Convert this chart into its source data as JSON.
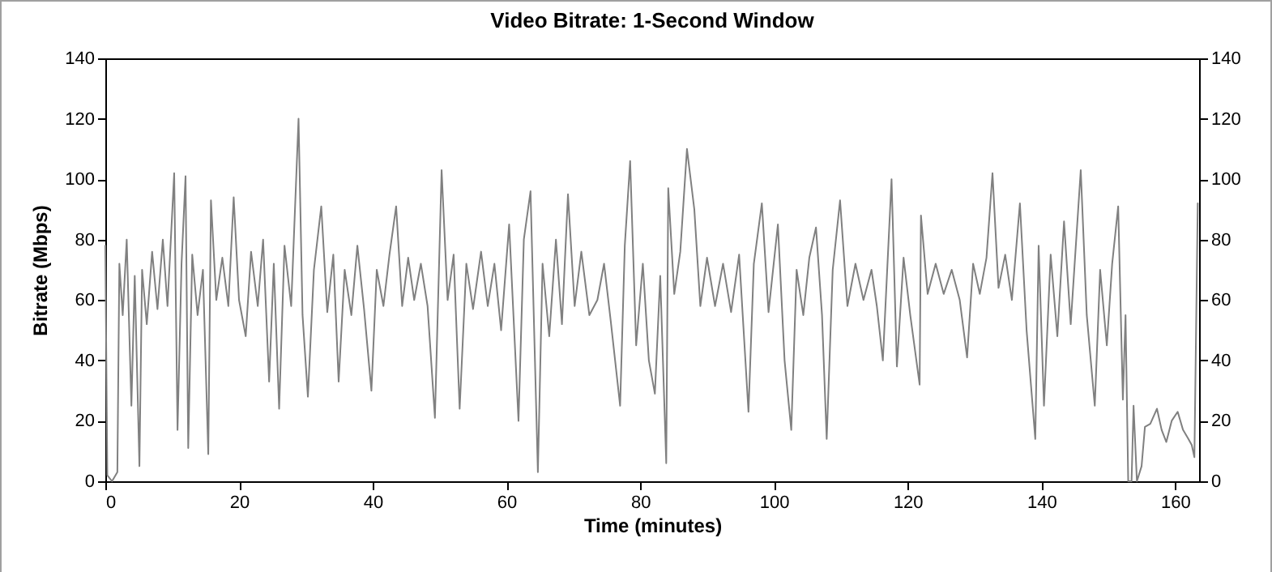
{
  "chart_data": {
    "type": "line",
    "title": "Video Bitrate: 1-Second Window",
    "xlabel": "Time (minutes)",
    "ylabel": "Bitrate (Mbps)",
    "x": [
      0,
      0.3,
      1,
      1.8,
      2.1,
      2.6,
      3.2,
      3.9,
      4.4,
      5.1,
      5.5,
      6.2,
      7,
      7.8,
      8.6,
      9.3,
      10.3,
      10.8,
      11.4,
      12,
      12.4,
      13,
      13.8,
      14.6,
      15.4,
      15.8,
      16.6,
      17.5,
      18.4,
      19.2,
      20,
      21,
      21.8,
      22.8,
      23.6,
      24.5,
      25.2,
      26,
      26.8,
      27.8,
      28.9,
      29.5,
      30.3,
      31.2,
      32.3,
      33.2,
      34.1,
      34.9,
      35.8,
      36.8,
      37.7,
      38.7,
      39.8,
      40.6,
      41.6,
      42.5,
      43.5,
      44.4,
      45.3,
      46.2,
      47.2,
      48.2,
      49.3,
      50.3,
      51.2,
      52.1,
      53,
      54,
      55,
      56.2,
      57.2,
      58.2,
      59.2,
      60.4,
      61.8,
      62.6,
      63.6,
      64.7,
      65.4,
      66.4,
      67.4,
      68.3,
      69.2,
      70.2,
      71.2,
      72.4,
      73.6,
      74.6,
      75.6,
      77,
      77.7,
      78.5,
      79.4,
      80.4,
      81.3,
      82.2,
      83,
      83.9,
      84.2,
      85.1,
      86,
      87,
      88.1,
      89,
      90,
      91.2,
      92.4,
      93.6,
      94.8,
      96.2,
      97,
      98.2,
      99.2,
      100.6,
      101.6,
      102.6,
      103.4,
      104.4,
      105.3,
      106.3,
      107.2,
      107.9,
      108.8,
      109.9,
      111,
      112.2,
      113.4,
      114.6,
      115.4,
      116.3,
      117.6,
      118.4,
      119.4,
      120.4,
      121.8,
      122,
      123,
      124.2,
      125.4,
      126.6,
      127.8,
      128.9,
      129.8,
      130.8,
      131.8,
      132.7,
      133.6,
      134.6,
      135.6,
      136.8,
      137.8,
      139.1,
      139.6,
      140.4,
      141.4,
      142.4,
      143.4,
      144.4,
      145.9,
      146.8,
      148,
      148.8,
      149.8,
      150.6,
      151.5,
      152.2,
      152.6,
      153,
      153.5,
      153.8,
      154.3,
      155,
      155.5,
      156.3,
      157.3,
      158,
      158.7,
      159.5,
      160.4,
      161.2,
      162,
      162.5,
      162.9,
      163.4
    ],
    "series": [
      {
        "color": "#808080",
        "values": [
          78,
          2,
          0,
          3,
          72,
          55,
          80,
          25,
          68,
          5,
          70,
          52,
          76,
          57,
          80,
          58,
          102,
          17,
          72,
          101,
          11,
          75,
          55,
          70,
          9,
          93,
          60,
          74,
          58,
          94,
          60,
          48,
          76,
          58,
          80,
          33,
          72,
          24,
          78,
          58,
          120,
          55,
          28,
          70,
          91,
          56,
          75,
          33,
          70,
          55,
          78,
          57,
          30,
          70,
          58,
          75,
          91,
          58,
          74,
          60,
          72,
          58,
          21,
          103,
          60,
          75,
          24,
          72,
          57,
          76,
          58,
          72,
          50,
          85,
          20,
          80,
          96,
          3,
          72,
          48,
          80,
          52,
          95,
          58,
          76,
          55,
          60,
          72,
          53,
          25,
          78,
          106,
          45,
          72,
          40,
          29,
          68,
          6,
          97,
          62,
          76,
          110,
          90,
          58,
          74,
          58,
          72,
          56,
          75,
          23,
          72,
          92,
          56,
          85,
          40,
          17,
          70,
          55,
          74,
          84,
          55,
          14,
          70,
          93,
          58,
          72,
          60,
          70,
          58,
          40,
          100,
          38,
          74,
          55,
          32,
          88,
          62,
          72,
          62,
          70,
          60,
          41,
          72,
          62,
          74,
          102,
          64,
          75,
          60,
          92,
          50,
          14,
          78,
          25,
          75,
          48,
          86,
          52,
          103,
          55,
          25,
          70,
          45,
          72,
          91,
          27,
          55,
          0,
          0,
          25,
          0,
          5,
          18,
          19,
          24,
          17,
          13,
          20,
          23,
          17,
          14,
          12,
          8,
          92
        ]
      }
    ],
    "xlim": [
      0,
      163.6
    ],
    "xticks": [
      0,
      20,
      40,
      60,
      80,
      100,
      120,
      140,
      160
    ],
    "ylim": [
      0,
      140
    ],
    "yticks": [
      0,
      20,
      40,
      60,
      80,
      100,
      120,
      140
    ],
    "y2lim": [
      0,
      140
    ],
    "y2ticks": [
      0,
      20,
      40,
      60,
      80,
      100,
      120,
      140
    ],
    "grid": false,
    "marker": "none",
    "line_style": "solid"
  }
}
